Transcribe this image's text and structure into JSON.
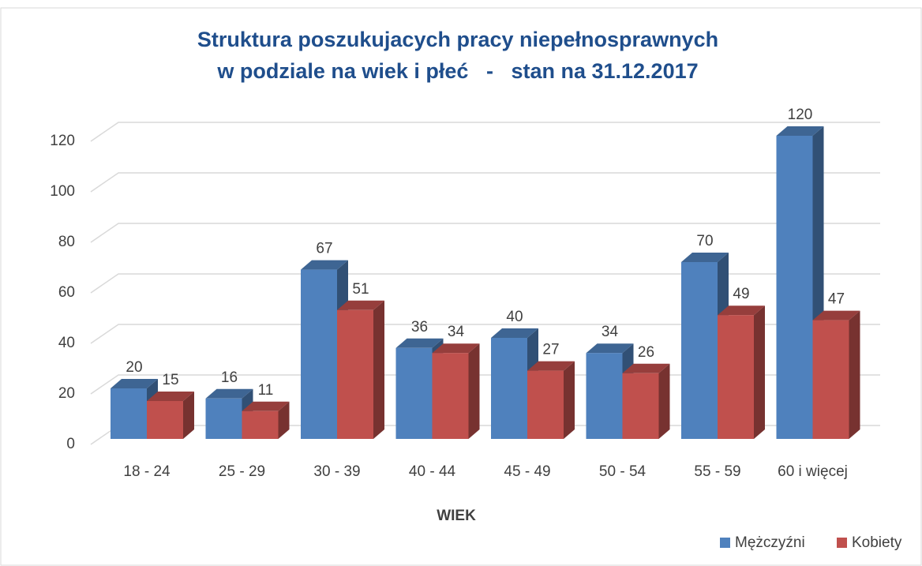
{
  "chart_data": {
    "type": "bar3d",
    "title": [
      "Struktura poszukujacych pracy niepełnosprawnych",
      "w podziale na wiek i płeć   -   stan na 31.12.2017"
    ],
    "x_label": "WIEK",
    "categories": [
      "18 - 24",
      "25 - 29",
      "30 - 39",
      "40 - 44",
      "45 - 49",
      "50 - 54",
      "55 - 59",
      "60 i więcej"
    ],
    "series": [
      {
        "name": "Mężczyźni",
        "color": "#4f81bd",
        "values": [
          20,
          16,
          67,
          36,
          40,
          34,
          70,
          120
        ]
      },
      {
        "name": "Kobiety",
        "color": "#c0504d",
        "values": [
          15,
          11,
          51,
          34,
          27,
          26,
          49,
          47
        ]
      }
    ],
    "ylim": [
      0,
      120
    ],
    "yticks": [
      0,
      20,
      40,
      60,
      80,
      100,
      120
    ],
    "grid": true,
    "legend": "bottom-right"
  }
}
